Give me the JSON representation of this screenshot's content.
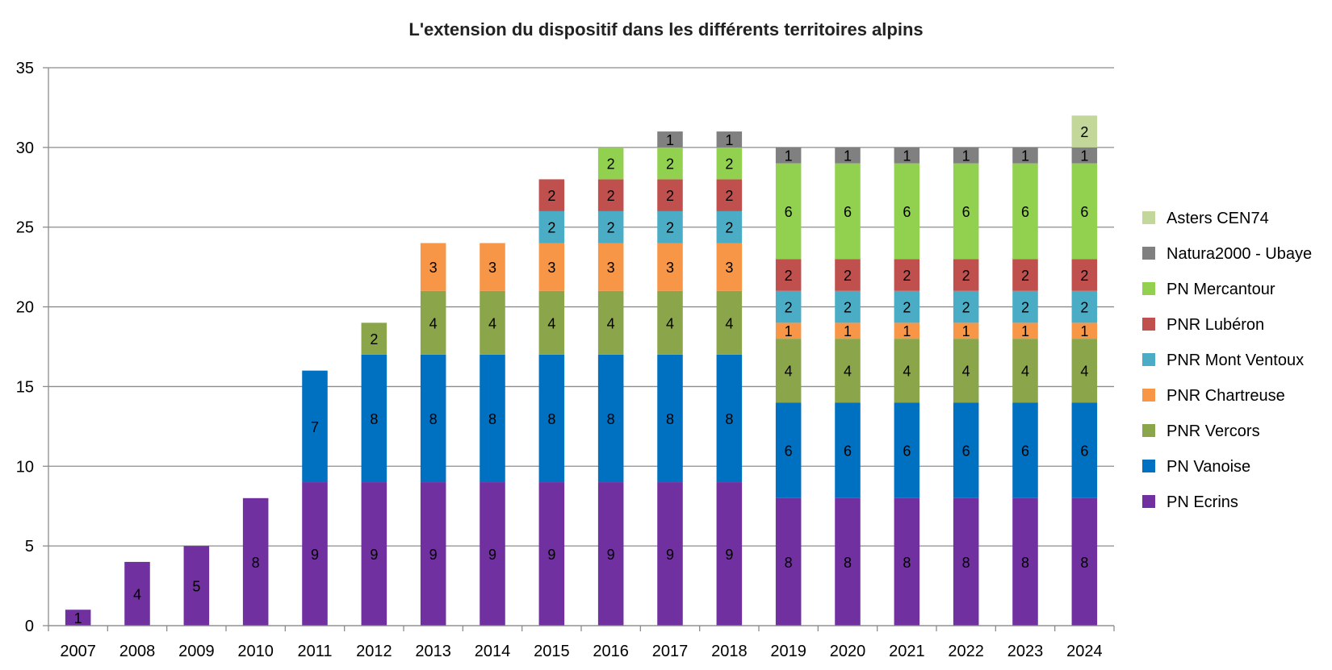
{
  "chart_data": {
    "type": "bar",
    "stacked": true,
    "title": "L'extension du dispositif dans les différents territoires alpins",
    "xlabel": "",
    "ylabel": "",
    "ylim": [
      0,
      35
    ],
    "yticks": [
      0,
      5,
      10,
      15,
      20,
      25,
      30,
      35
    ],
    "grid": true,
    "legend_position": "right",
    "categories": [
      "2007",
      "2008",
      "2009",
      "2010",
      "2011",
      "2012",
      "2013",
      "2014",
      "2015",
      "2016",
      "2017",
      "2018",
      "2019",
      "2020",
      "2021",
      "2022",
      "2023",
      "2024"
    ],
    "series": [
      {
        "name": "PN Ecrins",
        "color": "#7030A0",
        "values": [
          1,
          4,
          5,
          8,
          9,
          9,
          9,
          9,
          9,
          9,
          9,
          9,
          8,
          8,
          8,
          8,
          8,
          8
        ]
      },
      {
        "name": "PN Vanoise",
        "color": "#0070C0",
        "values": [
          0,
          0,
          0,
          0,
          7,
          8,
          8,
          8,
          8,
          8,
          8,
          8,
          6,
          6,
          6,
          6,
          6,
          6
        ]
      },
      {
        "name": "PNR Vercors",
        "color": "#8BA54A",
        "values": [
          0,
          0,
          0,
          0,
          0,
          2,
          4,
          4,
          4,
          4,
          4,
          4,
          4,
          4,
          4,
          4,
          4,
          4
        ]
      },
      {
        "name": "PNR Chartreuse",
        "color": "#F79646",
        "values": [
          0,
          0,
          0,
          0,
          0,
          0,
          3,
          3,
          3,
          3,
          3,
          3,
          1,
          1,
          1,
          1,
          1,
          1
        ]
      },
      {
        "name": "PNR Mont Ventoux",
        "color": "#4BACC6",
        "values": [
          0,
          0,
          0,
          0,
          0,
          0,
          0,
          0,
          2,
          2,
          2,
          2,
          2,
          2,
          2,
          2,
          2,
          2
        ]
      },
      {
        "name": "PNR Lubéron",
        "color": "#C0504D",
        "values": [
          0,
          0,
          0,
          0,
          0,
          0,
          0,
          0,
          2,
          2,
          2,
          2,
          2,
          2,
          2,
          2,
          2,
          2
        ]
      },
      {
        "name": "PN Mercantour",
        "color": "#92D050",
        "values": [
          0,
          0,
          0,
          0,
          0,
          0,
          0,
          0,
          0,
          2,
          2,
          2,
          6,
          6,
          6,
          6,
          6,
          6
        ]
      },
      {
        "name": "Natura2000 - Ubaye",
        "color": "#808080",
        "values": [
          0,
          0,
          0,
          0,
          0,
          0,
          0,
          0,
          0,
          0,
          1,
          1,
          1,
          1,
          1,
          1,
          1,
          1
        ]
      },
      {
        "name": "Asters CEN74",
        "color": "#C4D79B",
        "values": [
          0,
          0,
          0,
          0,
          0,
          0,
          0,
          0,
          0,
          0,
          0,
          0,
          0,
          0,
          0,
          0,
          0,
          2
        ]
      }
    ]
  }
}
